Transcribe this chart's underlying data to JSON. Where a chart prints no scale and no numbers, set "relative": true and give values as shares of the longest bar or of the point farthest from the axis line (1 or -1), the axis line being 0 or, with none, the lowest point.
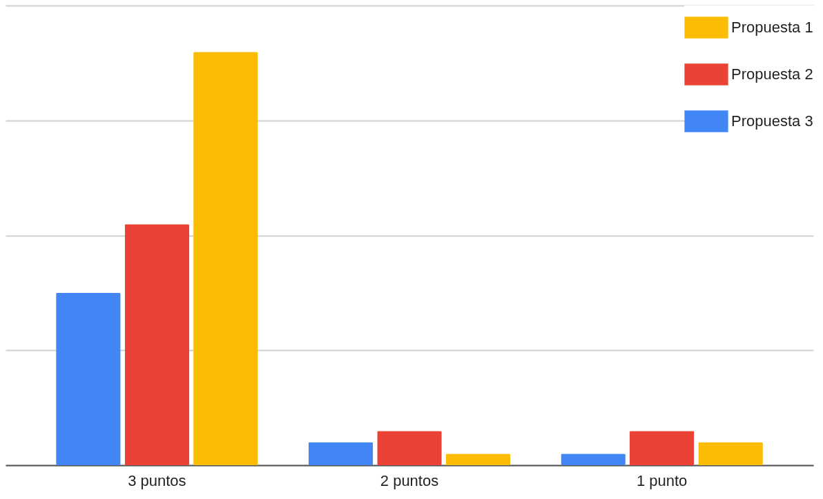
{
  "chart_data": {
    "type": "bar",
    "relative": true,
    "categories": [
      "3 puntos",
      "2 puntos",
      "1 punto"
    ],
    "series": [
      {
        "name": "Propuesta 3",
        "color": "#4285f4",
        "values": [
          0.417,
          0.056,
          0.028
        ]
      },
      {
        "name": "Propuesta 2",
        "color": "#ea4335",
        "values": [
          0.583,
          0.083,
          0.083
        ]
      },
      {
        "name": "Propuesta 1",
        "color": "#fbbc04",
        "values": [
          1,
          0.028,
          0.056
        ]
      }
    ],
    "grid": "y",
    "legend": "top right"
  }
}
